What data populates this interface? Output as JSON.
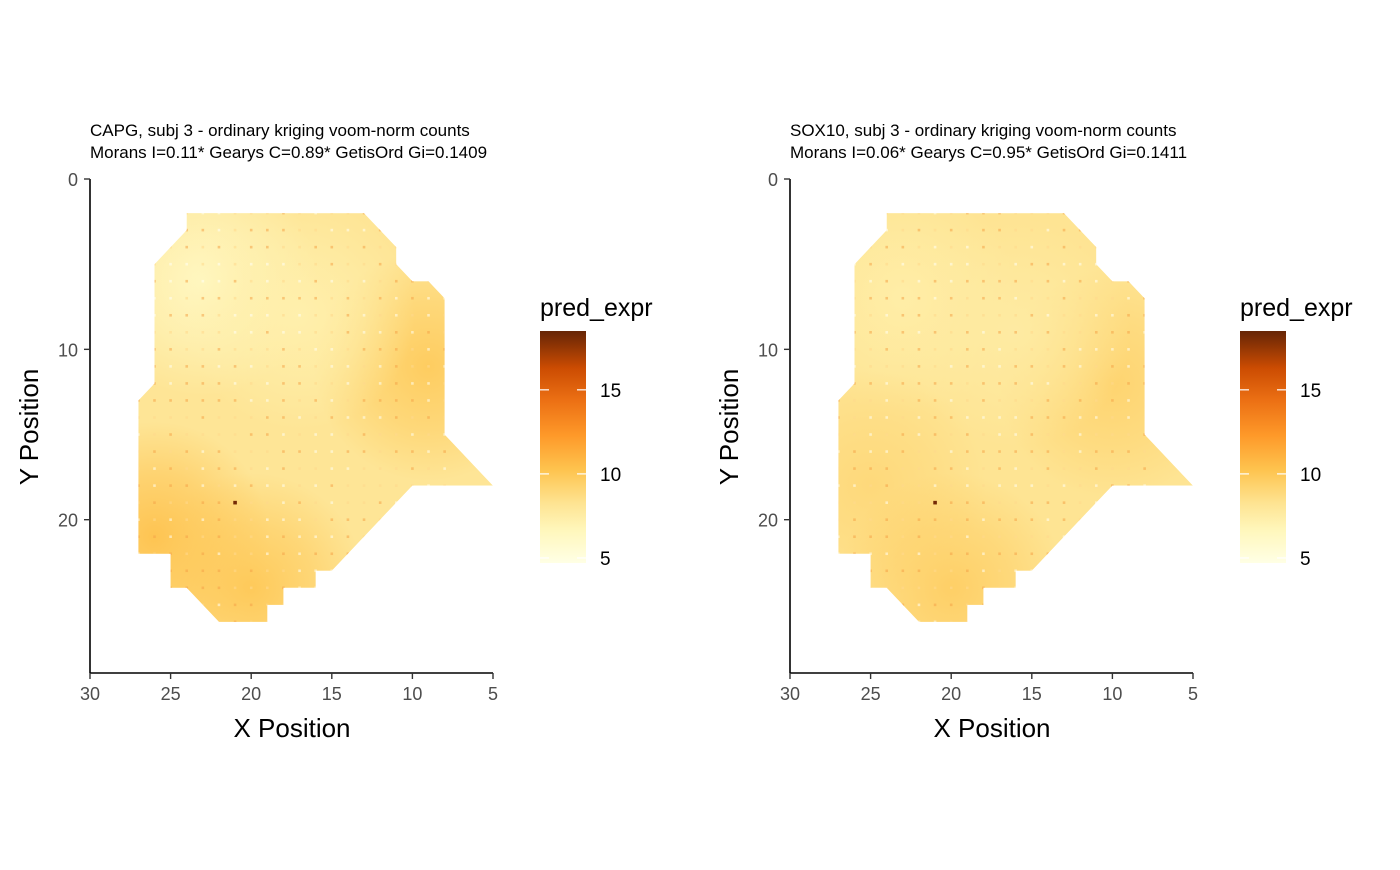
{
  "colors": {
    "low": "#FFFFE5",
    "mid": "#FEC44F",
    "high": "#662506",
    "axis": "#000000",
    "tick_text": "#4D4D4D"
  },
  "chart_data": [
    {
      "type": "heatmap",
      "title_line1": "CAPG, subj 3 - ordinary kriging voom-norm counts",
      "title_line2": "Morans I=0.11*  Gearys C=0.89*  GetisOrd Gi=0.1409",
      "xlabel": "X Position",
      "ylabel": "Y Position",
      "xlim": [
        30,
        5
      ],
      "ylim": [
        0,
        29
      ],
      "x_reversed": true,
      "y_reversed": true,
      "x_ticks": [
        30,
        25,
        20,
        15,
        10,
        5
      ],
      "x_tick_labels": [
        "30",
        "25",
        "20",
        "15",
        "10",
        "5"
      ],
      "y_ticks": [
        0,
        10,
        20
      ],
      "y_tick_labels": [
        "0",
        "10",
        "20"
      ],
      "legend_title": "pred_expr",
      "legend_range": [
        4.7,
        18.5
      ],
      "legend_ticks": [
        5,
        10,
        15
      ],
      "legend_tick_labels": [
        "5",
        "10",
        "15"
      ],
      "legend_position": "right",
      "region_outline": [
        [
          24,
          2
        ],
        [
          13,
          2
        ],
        [
          11,
          4
        ],
        [
          11,
          5
        ],
        [
          10,
          6
        ],
        [
          9,
          6
        ],
        [
          8,
          7
        ],
        [
          8,
          15
        ],
        [
          5,
          18
        ],
        [
          10,
          18
        ],
        [
          15,
          23
        ],
        [
          16,
          23
        ],
        [
          16,
          24
        ],
        [
          18,
          24
        ],
        [
          18,
          25
        ],
        [
          19,
          25
        ],
        [
          19,
          26
        ],
        [
          22,
          26
        ],
        [
          24,
          24
        ],
        [
          25,
          24
        ],
        [
          25,
          22
        ],
        [
          27,
          22
        ],
        [
          27,
          13
        ],
        [
          26,
          12
        ],
        [
          26,
          5
        ],
        [
          24,
          3
        ]
      ],
      "hotspots": [
        {
          "x": 23,
          "y": 6,
          "value": 6.3
        },
        {
          "x": 9,
          "y": 11,
          "value": 9.8
        },
        {
          "x": 26,
          "y": 21,
          "value": 10.3
        },
        {
          "x": 20,
          "y": 24,
          "value": 10.0
        },
        {
          "x": 17,
          "y": 8,
          "value": 7.2
        }
      ],
      "base_value": 8.1,
      "peak_point": {
        "x": 21,
        "y": 19,
        "value": 18.2
      }
    },
    {
      "type": "heatmap",
      "title_line1": "SOX10, subj 3 - ordinary kriging voom-norm counts",
      "title_line2": "Morans I=0.06*  Gearys C=0.95*  GetisOrd Gi=0.1411",
      "xlabel": "X Position",
      "ylabel": "Y Position",
      "xlim": [
        30,
        5
      ],
      "ylim": [
        0,
        29
      ],
      "x_reversed": true,
      "y_reversed": true,
      "x_ticks": [
        30,
        25,
        20,
        15,
        10,
        5
      ],
      "x_tick_labels": [
        "30",
        "25",
        "20",
        "15",
        "10",
        "5"
      ],
      "y_ticks": [
        0,
        10,
        20
      ],
      "y_tick_labels": [
        "0",
        "10",
        "20"
      ],
      "legend_title": "pred_expr",
      "legend_range": [
        4.7,
        18.5
      ],
      "legend_ticks": [
        5,
        10,
        15
      ],
      "legend_tick_labels": [
        "5",
        "10",
        "15"
      ],
      "legend_position": "right",
      "region_outline": [
        [
          24,
          2
        ],
        [
          13,
          2
        ],
        [
          11,
          4
        ],
        [
          11,
          5
        ],
        [
          10,
          6
        ],
        [
          9,
          6
        ],
        [
          8,
          7
        ],
        [
          8,
          15
        ],
        [
          5,
          18
        ],
        [
          10,
          18
        ],
        [
          15,
          23
        ],
        [
          16,
          23
        ],
        [
          16,
          24
        ],
        [
          18,
          24
        ],
        [
          18,
          25
        ],
        [
          19,
          25
        ],
        [
          19,
          26
        ],
        [
          22,
          26
        ],
        [
          24,
          24
        ],
        [
          25,
          24
        ],
        [
          25,
          22
        ],
        [
          27,
          22
        ],
        [
          27,
          13
        ],
        [
          26,
          12
        ],
        [
          26,
          5
        ],
        [
          24,
          3
        ]
      ],
      "hotspots": [
        {
          "x": 23,
          "y": 7,
          "value": 7.4
        },
        {
          "x": 10,
          "y": 12,
          "value": 9.3
        },
        {
          "x": 25,
          "y": 18,
          "value": 9.0
        },
        {
          "x": 20,
          "y": 24,
          "value": 9.6
        },
        {
          "x": 16,
          "y": 9,
          "value": 7.6
        }
      ],
      "base_value": 8.2,
      "peak_point": {
        "x": 21,
        "y": 19,
        "value": 18.2
      }
    }
  ]
}
